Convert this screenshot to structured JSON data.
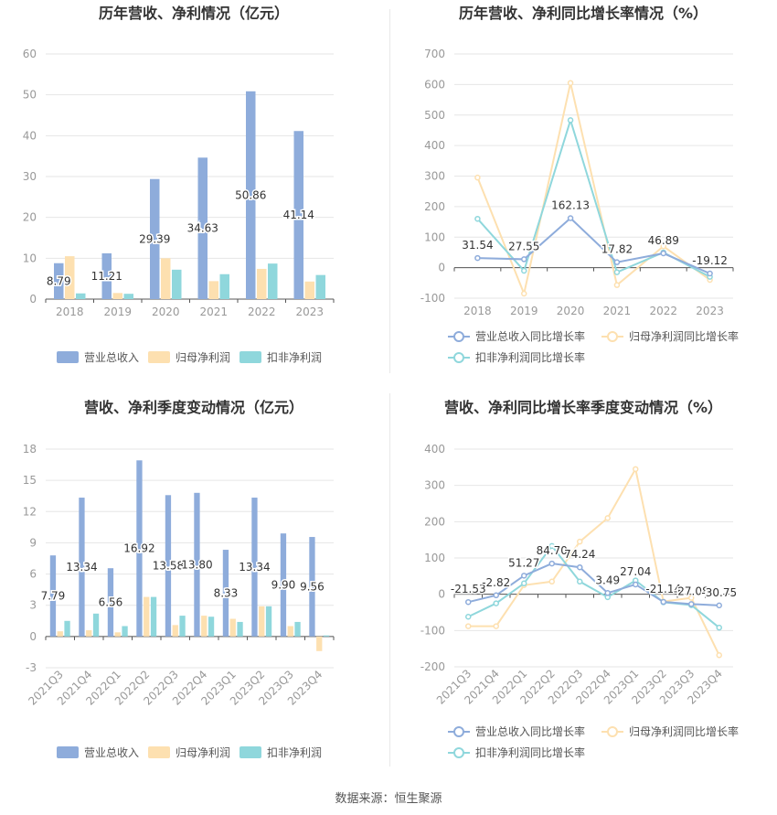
{
  "footer": {
    "source": "数据来源：恒生聚源"
  },
  "colors": {
    "revenue": "#8eacdb",
    "net_profit": "#fde0b0",
    "deducted_profit": "#8fd7dc",
    "axis": "#999999",
    "grid": "#e6e6e6",
    "title": "#333333"
  },
  "chart_data": [
    {
      "id": "annual-amount",
      "type": "bar",
      "title": "历年营收、净利情况（亿元）",
      "categories": [
        "2018",
        "2019",
        "2020",
        "2021",
        "2022",
        "2023"
      ],
      "ylim": [
        0,
        60
      ],
      "yticks": [
        0,
        10,
        20,
        30,
        40,
        50,
        60
      ],
      "series": [
        {
          "name": "营业总收入",
          "values": [
            8.79,
            11.21,
            29.39,
            34.63,
            50.86,
            41.14
          ],
          "labels": [
            "8.79",
            "11.21",
            "29.39",
            "34.63",
            "50.86",
            "41.14"
          ]
        },
        {
          "name": "归母净利润",
          "values": [
            10.5,
            1.5,
            10.0,
            4.4,
            7.4,
            4.3
          ]
        },
        {
          "name": "扣非净利润",
          "values": [
            1.4,
            1.3,
            7.2,
            6.1,
            8.7,
            5.9
          ]
        }
      ]
    },
    {
      "id": "annual-growth",
      "type": "line",
      "title": "历年营收、净利同比增长率情况（%）",
      "categories": [
        "2018",
        "2019",
        "2020",
        "2021",
        "2022",
        "2023"
      ],
      "ylim": [
        -100,
        700
      ],
      "yticks": [
        -100,
        0,
        100,
        200,
        300,
        400,
        500,
        600,
        700
      ],
      "series": [
        {
          "name": "营业总收入同比增长率",
          "values": [
            31.54,
            27.55,
            162.13,
            17.82,
            46.89,
            -19.12
          ],
          "labels": [
            "31.54",
            "27.55",
            "162.13",
            "17.82",
            "46.89",
            "-19.12"
          ]
        },
        {
          "name": "归母净利润同比增长率",
          "values": [
            295,
            -85,
            605,
            -57,
            70,
            -40
          ]
        },
        {
          "name": "扣非净利润同比增长率",
          "values": [
            160,
            -10,
            483,
            -15,
            50,
            -30
          ]
        }
      ]
    },
    {
      "id": "quarterly-amount",
      "type": "bar",
      "title": "营收、净利季度变动情况（亿元）",
      "categories": [
        "2021Q3",
        "2021Q4",
        "2022Q1",
        "2022Q2",
        "2022Q3",
        "2022Q4",
        "2023Q1",
        "2023Q2",
        "2023Q3",
        "2023Q4"
      ],
      "ylim": [
        -3,
        18
      ],
      "yticks": [
        -3,
        0,
        3,
        6,
        9,
        12,
        15,
        18
      ],
      "series": [
        {
          "name": "营业总收入",
          "values": [
            7.79,
            13.34,
            6.56,
            16.92,
            13.58,
            13.8,
            8.33,
            13.34,
            9.9,
            9.56
          ],
          "labels": [
            "7.79",
            "13.34",
            "6.56",
            "16.92",
            "13.58",
            "13.80",
            "8.33",
            "13.34",
            "9.90",
            "9.56"
          ]
        },
        {
          "name": "归母净利润",
          "values": [
            0.5,
            0.6,
            0.4,
            3.8,
            1.1,
            2.0,
            1.7,
            2.9,
            1.0,
            -1.4
          ]
        },
        {
          "name": "扣非净利润",
          "values": [
            1.5,
            2.2,
            1.0,
            3.8,
            2.0,
            1.9,
            1.4,
            2.9,
            1.4,
            0.1
          ]
        }
      ]
    },
    {
      "id": "quarterly-growth",
      "type": "line",
      "title": "营收、净利同比增长率季度变动情况（%）",
      "categories": [
        "2021Q3",
        "2021Q4",
        "2022Q1",
        "2022Q2",
        "2022Q3",
        "2022Q4",
        "2023Q1",
        "2023Q2",
        "2023Q3",
        "2023Q4"
      ],
      "ylim": [
        -200,
        400
      ],
      "yticks": [
        -200,
        -100,
        0,
        100,
        200,
        300,
        400
      ],
      "series": [
        {
          "name": "营业总收入同比增长率",
          "values": [
            -21.53,
            -2.82,
            51.27,
            84.7,
            74.24,
            3.49,
            27.04,
            -21.14,
            -27.08,
            -30.75
          ],
          "labels": [
            "-21.53",
            "-2.82",
            "51.27",
            "84.70",
            "74.24",
            "3.49",
            "27.04",
            "-21.14",
            "-27.08",
            "-30.75"
          ]
        },
        {
          "name": "归母净利润同比增长率",
          "values": [
            -88,
            -88,
            25,
            35,
            145,
            210,
            345,
            -20,
            -10,
            -168
          ]
        },
        {
          "name": "扣非净利润同比增长率",
          "values": [
            -62,
            -25,
            30,
            133,
            35,
            -8,
            38,
            -22,
            -30,
            -92
          ]
        }
      ]
    }
  ]
}
